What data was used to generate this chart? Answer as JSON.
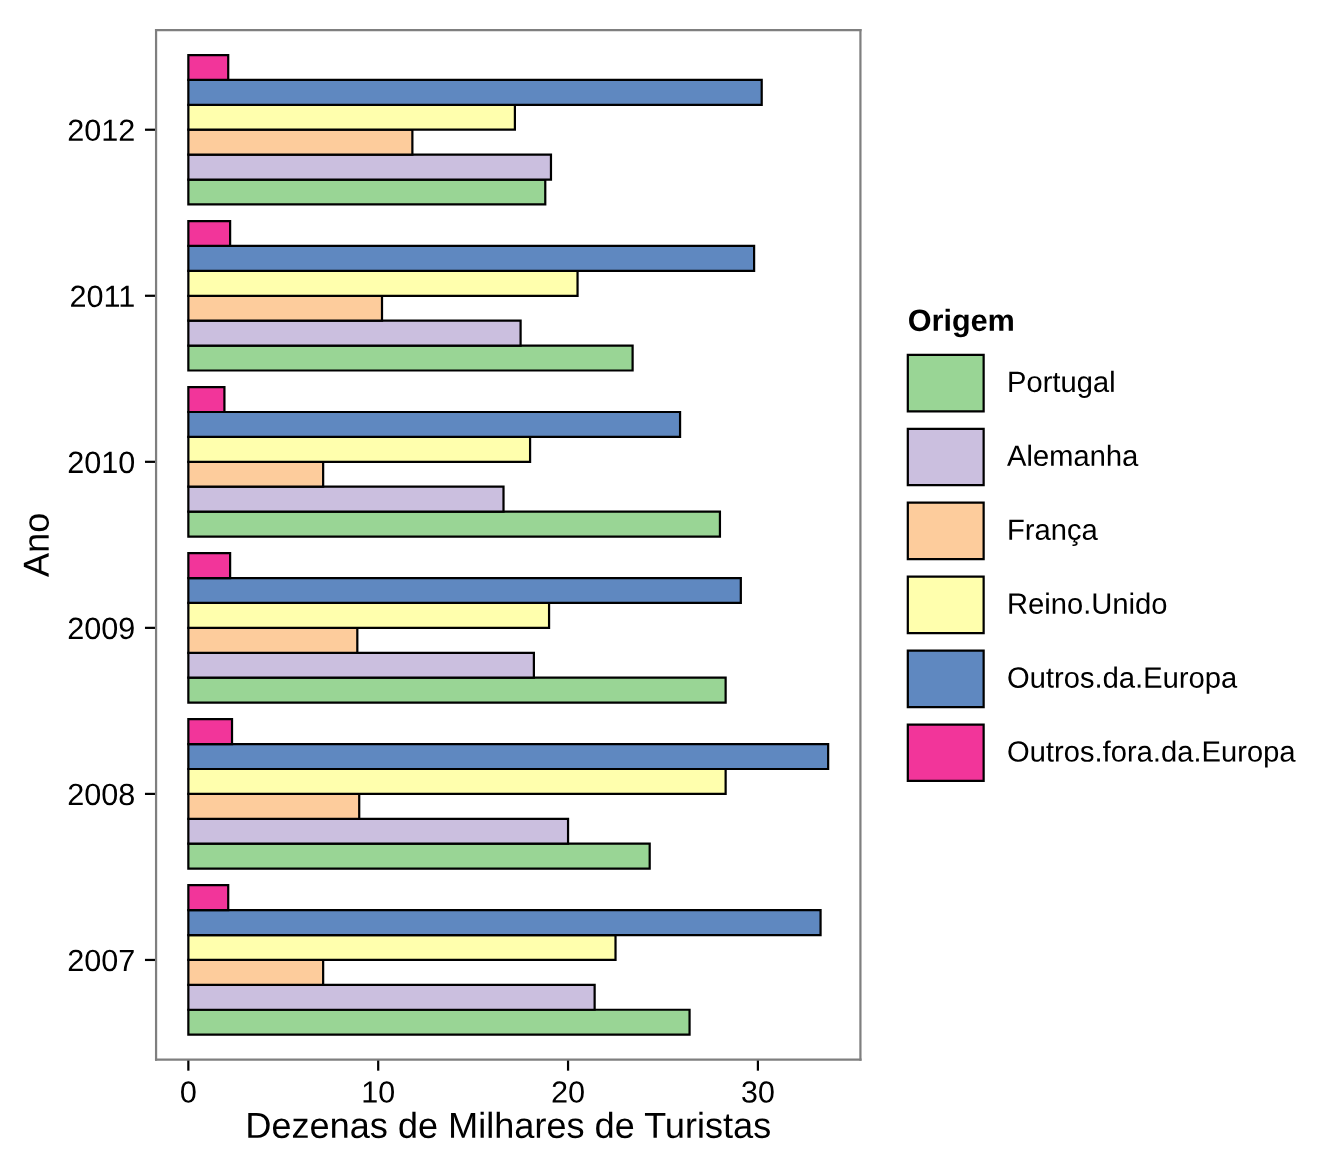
{
  "chart_data": {
    "type": "bar",
    "orientation": "horizontal",
    "xlabel": "Dezenas de Milhares de Turistas",
    "ylabel": "Ano",
    "legend_title": "Origem",
    "legend": "right",
    "grid": false,
    "categories": [
      "2012",
      "2011",
      "2010",
      "2009",
      "2008",
      "2007"
    ],
    "xlim": [
      -1.7,
      35.4
    ],
    "xticks": [
      0,
      10,
      20,
      30
    ],
    "series": [
      {
        "name": "Portugal",
        "color": "#99d595",
        "values": [
          18.8,
          23.4,
          28.0,
          28.3,
          24.3,
          26.4
        ]
      },
      {
        "name": "Alemanha",
        "color": "#cbbfdf",
        "values": [
          19.1,
          17.5,
          16.6,
          18.2,
          20.0,
          21.4
        ]
      },
      {
        "name": "França",
        "color": "#fdcc9c",
        "values": [
          11.8,
          10.2,
          7.1,
          8.9,
          9.0,
          7.1
        ]
      },
      {
        "name": "Reino.Unido",
        "color": "#ffffad",
        "values": [
          17.2,
          20.5,
          18.0,
          19.0,
          28.3,
          22.5
        ]
      },
      {
        "name": "Outros.da.Europa",
        "color": "#5f88c0",
        "values": [
          30.2,
          29.8,
          25.9,
          29.1,
          33.7,
          33.3
        ]
      },
      {
        "name": "Outros.fora.da.Europa",
        "color": "#f2359a",
        "values": [
          2.1,
          2.2,
          1.9,
          2.2,
          2.3,
          2.1
        ]
      }
    ]
  }
}
